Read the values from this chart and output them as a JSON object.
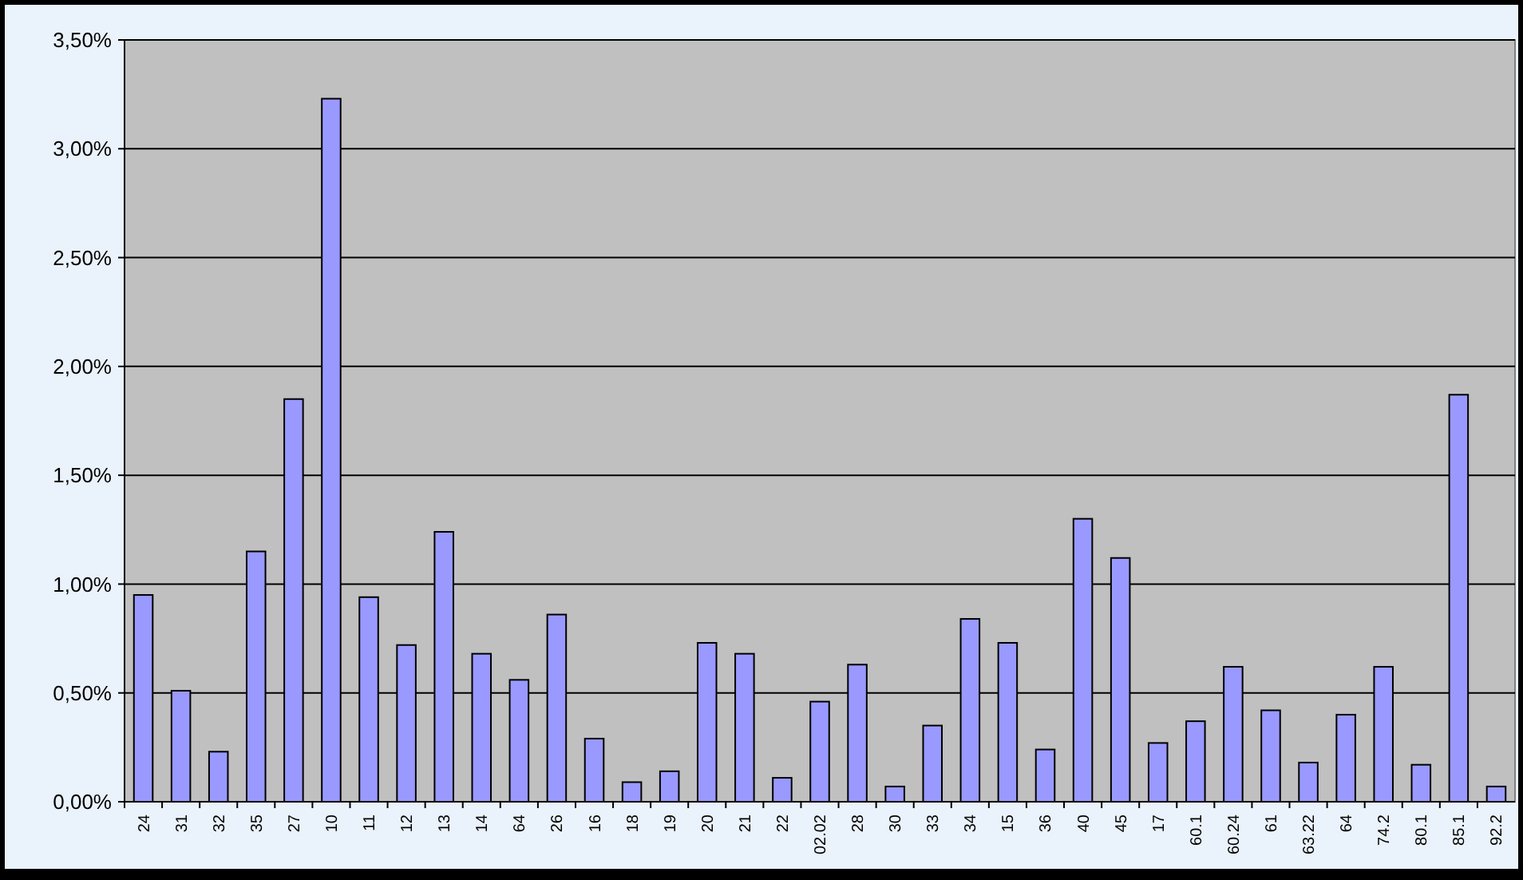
{
  "chart_data": {
    "type": "bar",
    "categories": [
      "24",
      "31",
      "32",
      "35",
      "27",
      "10",
      "11",
      "12",
      "13",
      "14",
      "64",
      "26",
      "16",
      "18",
      "19",
      "20",
      "21",
      "22",
      "02.02",
      "28",
      "30",
      "33",
      "34",
      "15",
      "36",
      "40",
      "45",
      "17",
      "60.1",
      "60.24",
      "61",
      "63.22",
      "64",
      "74.2",
      "80.1",
      "85.1",
      "92.2"
    ],
    "values": [
      0.95,
      0.51,
      0.23,
      1.15,
      1.85,
      3.23,
      0.94,
      0.72,
      1.24,
      0.68,
      0.56,
      0.86,
      0.29,
      0.09,
      0.14,
      0.73,
      0.68,
      0.11,
      0.46,
      0.63,
      0.07,
      0.35,
      0.84,
      0.73,
      0.24,
      1.3,
      1.12,
      0.27,
      0.37,
      0.62,
      0.42,
      0.18,
      0.4,
      0.62,
      0.17,
      1.87,
      0.07
    ],
    "color": "#9999ff",
    "ylim": [
      0,
      3.5
    ],
    "yticks": [
      {
        "value": 0,
        "label": "0,00%"
      },
      {
        "value": 0.5,
        "label": "0,50%"
      },
      {
        "value": 1,
        "label": "1,00%"
      },
      {
        "value": 1.5,
        "label": "1,50%"
      },
      {
        "value": 2,
        "label": "2,00%"
      },
      {
        "value": 2.5,
        "label": "2,50%"
      },
      {
        "value": 3,
        "label": "3,00%"
      },
      {
        "value": 3.5,
        "label": "3,50%"
      }
    ],
    "grid": "y"
  }
}
